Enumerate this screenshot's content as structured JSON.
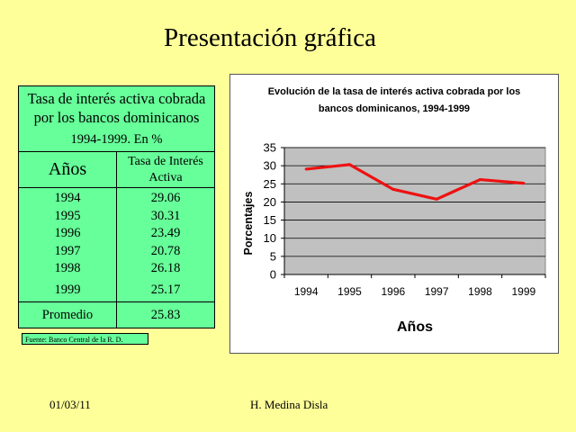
{
  "slide": {
    "title": "Presentación gráfica",
    "footer_date": "01/03/11",
    "footer_author": "H. Medina Disla"
  },
  "table": {
    "caption_line1": "Tasa de interés activa cobrada por los bancos dominicanos",
    "caption_line2": "1994-1999. En %",
    "col1_header": "Años",
    "col2_header": "Tasa de Interés Activa",
    "rows": [
      {
        "year": "1994",
        "value": "29.06"
      },
      {
        "year": "1995",
        "value": "30.31"
      },
      {
        "year": "1996",
        "value": "23.49"
      },
      {
        "year": "1997",
        "value": "20.78"
      },
      {
        "year": "1998",
        "value": "26.18"
      },
      {
        "year": "1999",
        "value": "25.17"
      }
    ],
    "avg_label": "Promedio",
    "avg_value": "25.83",
    "source": "Fuente: Banco Central de la R. D."
  },
  "chart_data": {
    "type": "line",
    "title": "Evolución de la tasa de interés activa cobrada por los bancos dominicanos, 1994-1999",
    "title_line1": "Evolución de la tasa de interés activa cobrada por los",
    "title_line2": "bancos dominicanos, 1994-1999",
    "xlabel": "Años",
    "ylabel": "Porcentajes",
    "categories": [
      "1994",
      "1995",
      "1996",
      "1997",
      "1998",
      "1999"
    ],
    "series": [
      {
        "values": [
          29.06,
          30.31,
          23.49,
          20.78,
          26.18,
          25.17
        ],
        "color": "#ee1111"
      }
    ],
    "ylim": [
      0,
      35
    ],
    "yticks": [
      0,
      5,
      10,
      15,
      20,
      25,
      30,
      35
    ],
    "grid": true,
    "plot_background": "#c0c0c0"
  }
}
